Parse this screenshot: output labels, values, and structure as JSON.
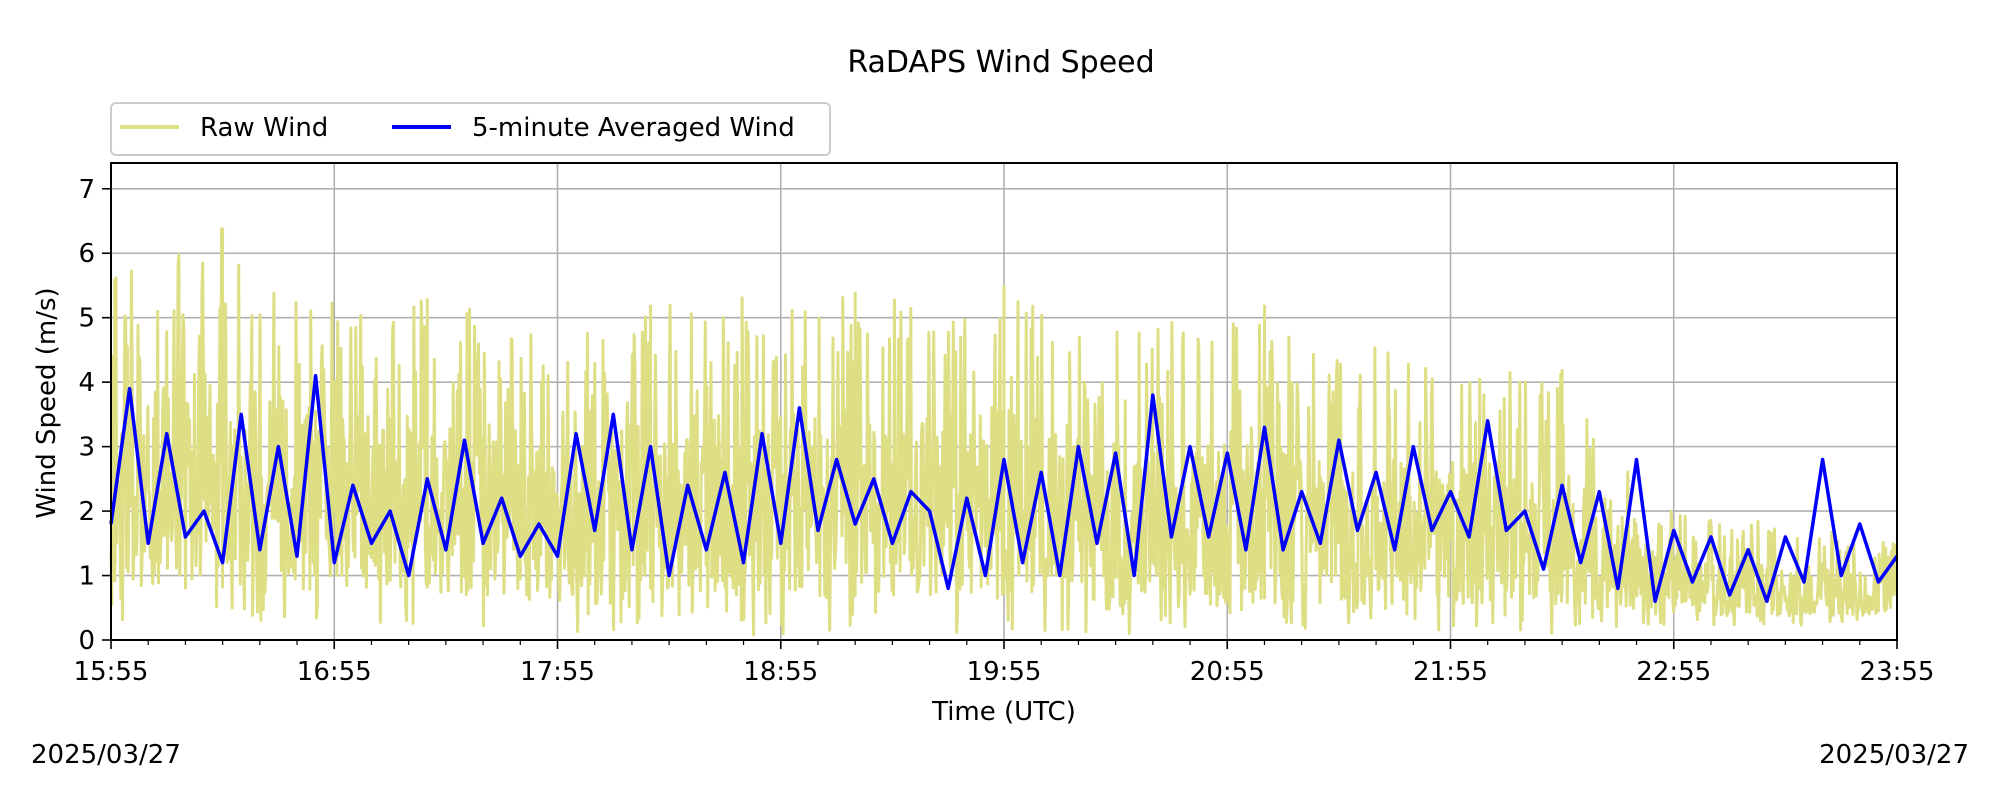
{
  "chart_data": {
    "type": "line",
    "title": "RaDAPS Wind Speed",
    "xlabel": "Time (UTC)",
    "ylabel": "Wind Speed (m/s)",
    "x_range": [
      "15:55",
      "23:55"
    ],
    "ylim": [
      0,
      7.4
    ],
    "x_ticks": [
      "15:55",
      "16:55",
      "17:55",
      "18:55",
      "19:55",
      "20:55",
      "21:55",
      "22:55",
      "23:55"
    ],
    "y_ticks": [
      0,
      1,
      2,
      3,
      4,
      5,
      6,
      7
    ],
    "grid": true,
    "legend": {
      "position": "top-left, above plot",
      "columns": 2
    },
    "date_left": "2025/03/27",
    "date_right": "2025/03/27",
    "series": [
      {
        "name": "Raw Wind",
        "color": "#dede85",
        "style": "noisy raw samples",
        "envelope_times": [
          "15:55",
          "16:25",
          "16:55",
          "17:25",
          "17:55",
          "18:25",
          "18:55",
          "19:25",
          "19:55",
          "20:25",
          "20:55",
          "21:25",
          "21:55",
          "22:25",
          "22:55",
          "23:25",
          "23:55"
        ],
        "envelope_min": [
          0.3,
          0.2,
          0.2,
          0.2,
          0.1,
          0.2,
          0.0,
          0.1,
          0.1,
          0.1,
          0.0,
          0.1,
          0.1,
          0.1,
          0.2,
          0.2,
          0.3
        ],
        "envelope_max": [
          5.6,
          6.4,
          5.2,
          5.3,
          4.7,
          5.2,
          5.4,
          5.4,
          5.5,
          4.8,
          5.2,
          4.8,
          4.2,
          4.2,
          2.0,
          1.8,
          1.5
        ],
        "peaks": [
          {
            "time": "15:56",
            "value": 5.6
          },
          {
            "time": "16:25",
            "value": 6.4
          },
          {
            "time": "17:20",
            "value": 5.3
          },
          {
            "time": "18:20",
            "value": 5.2
          },
          {
            "time": "19:15",
            "value": 5.4
          },
          {
            "time": "19:55",
            "value": 5.5
          },
          {
            "time": "21:05",
            "value": 5.2
          },
          {
            "time": "22:25",
            "value": 4.2
          }
        ]
      },
      {
        "name": "5-minute Averaged Wind",
        "color": "#0000ff",
        "times": [
          "15:55",
          "16:00",
          "16:05",
          "16:10",
          "16:15",
          "16:20",
          "16:25",
          "16:30",
          "16:35",
          "16:40",
          "16:45",
          "16:50",
          "16:55",
          "17:00",
          "17:05",
          "17:10",
          "17:15",
          "17:20",
          "17:25",
          "17:30",
          "17:35",
          "17:40",
          "17:45",
          "17:50",
          "17:55",
          "18:00",
          "18:05",
          "18:10",
          "18:15",
          "18:20",
          "18:25",
          "18:30",
          "18:35",
          "18:40",
          "18:45",
          "18:50",
          "18:55",
          "19:00",
          "19:05",
          "19:10",
          "19:15",
          "19:20",
          "19:25",
          "19:30",
          "19:35",
          "19:40",
          "19:45",
          "19:50",
          "19:55",
          "20:00",
          "20:05",
          "20:10",
          "20:15",
          "20:20",
          "20:25",
          "20:30",
          "20:35",
          "20:40",
          "20:45",
          "20:50",
          "20:55",
          "21:00",
          "21:05",
          "21:10",
          "21:15",
          "21:20",
          "21:25",
          "21:30",
          "21:35",
          "21:40",
          "21:45",
          "21:50",
          "21:55",
          "22:00",
          "22:05",
          "22:10",
          "22:15",
          "22:20",
          "22:25",
          "22:30",
          "22:35",
          "22:40",
          "22:45",
          "22:50",
          "22:55",
          "23:00",
          "23:05",
          "23:10",
          "23:15",
          "23:20",
          "23:25",
          "23:30",
          "23:35",
          "23:40",
          "23:45",
          "23:50",
          "23:55"
        ],
        "values": [
          1.8,
          3.9,
          1.5,
          3.2,
          1.6,
          2.0,
          1.2,
          3.5,
          1.4,
          3.0,
          1.3,
          4.1,
          1.2,
          2.4,
          1.5,
          2.0,
          1.0,
          2.5,
          1.4,
          3.1,
          1.5,
          2.2,
          1.3,
          1.8,
          1.3,
          3.2,
          1.7,
          3.5,
          1.4,
          3.0,
          1.0,
          2.4,
          1.4,
          2.6,
          1.2,
          3.2,
          1.5,
          3.6,
          1.7,
          2.8,
          1.8,
          2.5,
          1.5,
          2.3,
          2.0,
          0.8,
          2.2,
          1.0,
          2.8,
          1.2,
          2.6,
          1.0,
          3.0,
          1.5,
          2.9,
          1.0,
          3.8,
          1.6,
          3.0,
          1.6,
          2.9,
          1.4,
          3.3,
          1.4,
          2.3,
          1.5,
          3.1,
          1.7,
          2.6,
          1.4,
          3.0,
          1.7,
          2.3,
          1.6,
          3.4,
          1.7,
          2.0,
          1.1,
          2.4,
          1.2,
          2.3,
          0.8,
          2.8,
          0.6,
          1.7,
          0.9,
          1.6,
          0.7,
          1.4,
          0.6,
          1.6,
          0.9,
          2.8,
          1.0,
          1.8,
          0.9,
          1.3
        ]
      }
    ]
  }
}
